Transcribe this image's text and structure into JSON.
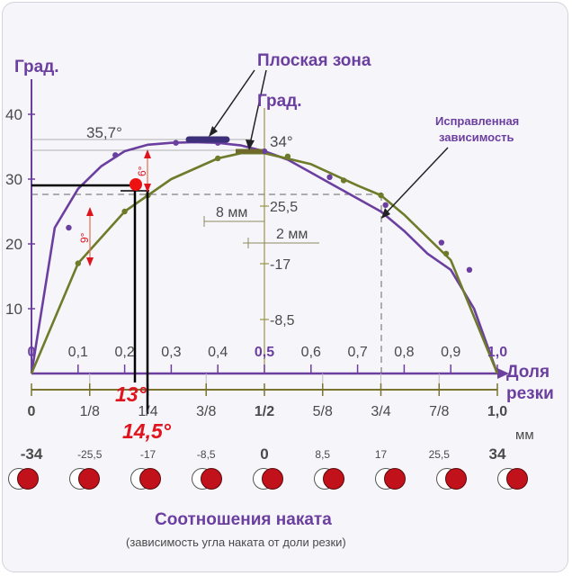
{
  "chart_data": {
    "type": "line",
    "title": "Соотношения  наката",
    "subtitle": "(зависимость угла наката от доли резки)",
    "y_axis_label": "Град.",
    "x_axis_label_line1": "Доля",
    "x_axis_label_line2": "резки",
    "inner_axis_label": "Град.",
    "mm_label": "мм",
    "ylim": [
      0,
      40
    ],
    "xlim": [
      0,
      1
    ],
    "y_ticks": [
      "10",
      "20",
      "30",
      "40"
    ],
    "x_ticks": [
      "0",
      "0,1",
      "0,2",
      "0,3",
      "0,4",
      "0,5",
      "0,6",
      "0,7",
      "0,8",
      "0,9",
      "1,0"
    ],
    "fraction_ticks": [
      "0",
      "1/8",
      "1/4",
      "3/8",
      "1/2",
      "5/8",
      "3/4",
      "7/8",
      "1,0"
    ],
    "inner_ticks": [
      "25,5",
      "-17",
      "-8,5"
    ],
    "mm_ticks": [
      "-34",
      "-25,5",
      "-17",
      "-8,5",
      "0",
      "8,5",
      "17",
      "25,5",
      "34"
    ],
    "series": [
      {
        "name": "Исправленная зависимость",
        "color": "#6b3fa0",
        "x": [
          0,
          0.05,
          0.1,
          0.15,
          0.2,
          0.25,
          0.3,
          0.35,
          0.4,
          0.45,
          0.5,
          0.55,
          0.6,
          0.65,
          0.7,
          0.75,
          0.8,
          0.85,
          0.9,
          0.95,
          1.0
        ],
        "y": [
          0,
          22.5,
          28.5,
          32.0,
          34.3,
          35.3,
          35.6,
          35.7,
          35.6,
          35.2,
          34.3,
          33.0,
          31.0,
          29.0,
          27.0,
          25.0,
          22.0,
          18.5,
          16.0,
          10.0,
          0
        ],
        "points_x": [
          0.08,
          0.18,
          0.31,
          0.4,
          0.5,
          0.64,
          0.76,
          0.88,
          0.94
        ],
        "points_y": [
          22.5,
          33.7,
          35.6,
          35.6,
          34.3,
          30.3,
          26.0,
          20.2,
          16.0
        ]
      },
      {
        "name": "",
        "color": "#6f7a2a",
        "x": [
          0,
          0.1,
          0.2,
          0.25,
          0.3,
          0.4,
          0.45,
          0.5,
          0.6,
          0.7,
          0.75,
          0.8,
          0.9,
          1.0
        ],
        "y": [
          0,
          17.0,
          25.0,
          27.5,
          30.0,
          33.2,
          34.0,
          34.0,
          32.3,
          29.0,
          27.5,
          24.5,
          17.5,
          0
        ],
        "points_x": [
          0.1,
          0.2,
          0.25,
          0.4,
          0.55,
          0.67,
          0.75,
          0.89
        ],
        "points_y": [
          17.0,
          25.0,
          27.5,
          33.2,
          33.5,
          29.8,
          27.5,
          18.5
        ]
      }
    ],
    "annotations": {
      "flat_zone": "Плоская зона",
      "corrected_line1": "Исправленная",
      "corrected_line2": "зависимость",
      "peak_value": "35,7°",
      "inner_peak": "34°",
      "dim_8mm": "8 мм",
      "dim_2mm": "2 мм",
      "dim_9deg": "9°",
      "dim_6deg": "6°",
      "red_13": "13°",
      "red_145": "14,5°"
    },
    "circles_count": 9
  }
}
